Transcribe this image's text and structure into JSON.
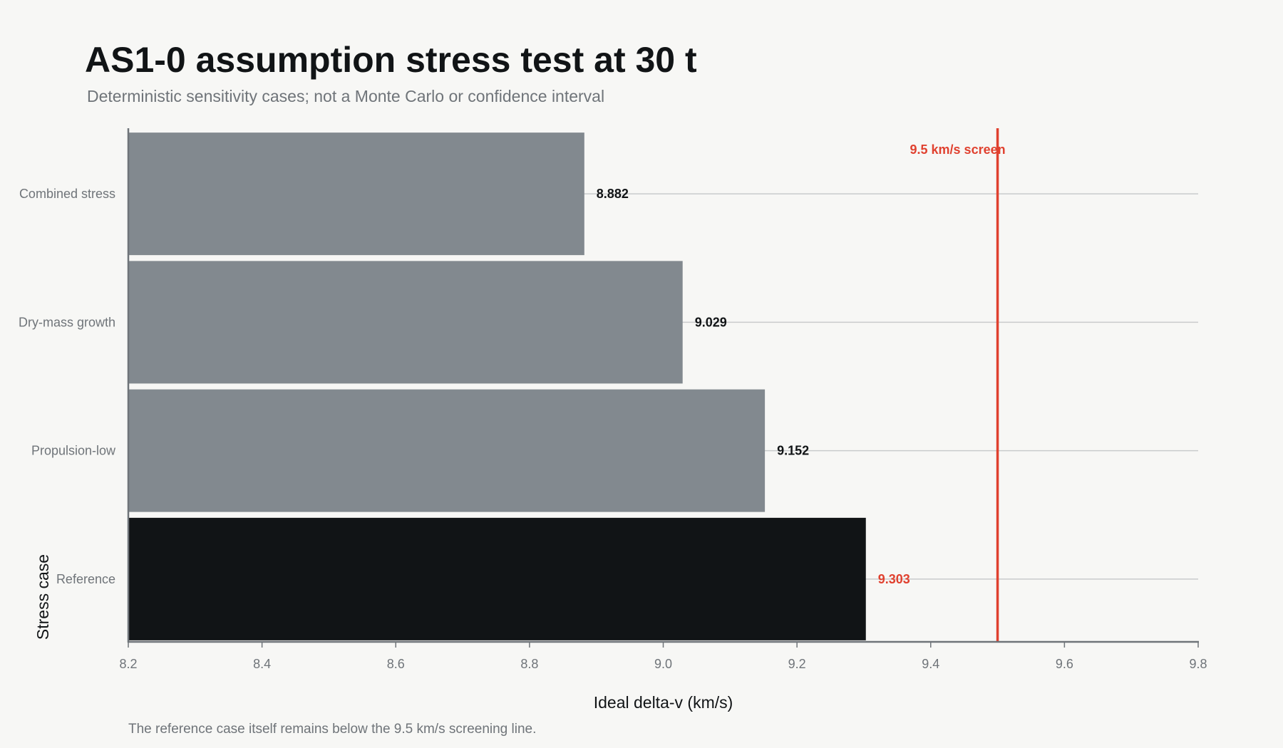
{
  "chart_data": {
    "type": "bar",
    "orientation": "horizontal",
    "title": "AS1-0 assumption stress test at 30 t",
    "subtitle": "Deterministic sensitivity cases; not a Monte Carlo or confidence interval",
    "xlabel": "Ideal delta-v (km/s)",
    "ylabel": "Stress case",
    "xlim": [
      8.2,
      9.8
    ],
    "xticks": [
      "8.2",
      "8.4",
      "8.6",
      "8.8",
      "9.0",
      "9.2",
      "9.4",
      "9.6",
      "9.8"
    ],
    "categories": [
      "Combined stress",
      "Dry-mass growth",
      "Propulsion-low",
      "Reference"
    ],
    "values": [
      8.882,
      9.029,
      9.152,
      9.303
    ],
    "value_labels": [
      "8.882",
      "9.029",
      "9.152",
      "9.303"
    ],
    "bar_colors": [
      "#82898f",
      "#82898f",
      "#82898f",
      "#111416"
    ],
    "label_colors": [
      "#111416",
      "#111416",
      "#111416",
      "#e0412f"
    ],
    "reference_line": {
      "value": 9.5,
      "label": "9.5 km/s screen",
      "color": "#e0412f"
    },
    "grid": "horizontal",
    "note": "The reference case itself remains below the 9.5 km/s screening line."
  }
}
